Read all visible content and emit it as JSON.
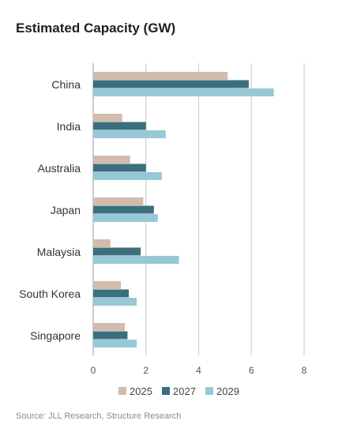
{
  "chart_data": {
    "type": "bar",
    "orientation": "horizontal",
    "title": "Estimated Capacity (GW)",
    "categories": [
      "China",
      "India",
      "Australia",
      "Japan",
      "Malaysia",
      "South Korea",
      "Singapore"
    ],
    "series": [
      {
        "name": "2025",
        "color": "#d2bcad",
        "values": [
          5.1,
          1.1,
          1.4,
          1.9,
          0.65,
          1.05,
          1.2
        ]
      },
      {
        "name": "2027",
        "color": "#3b6f7e",
        "values": [
          5.9,
          2.0,
          2.0,
          2.3,
          1.8,
          1.35,
          1.3
        ]
      },
      {
        "name": "2029",
        "color": "#97c8d6",
        "values": [
          6.85,
          2.75,
          2.6,
          2.45,
          3.25,
          1.65,
          1.65
        ]
      }
    ],
    "xlim": [
      0,
      8
    ],
    "xticks": [
      0,
      2,
      4,
      6,
      8
    ],
    "grid": true,
    "legend_position": "bottom",
    "source": "Source: JLL Research, Structure Research"
  }
}
